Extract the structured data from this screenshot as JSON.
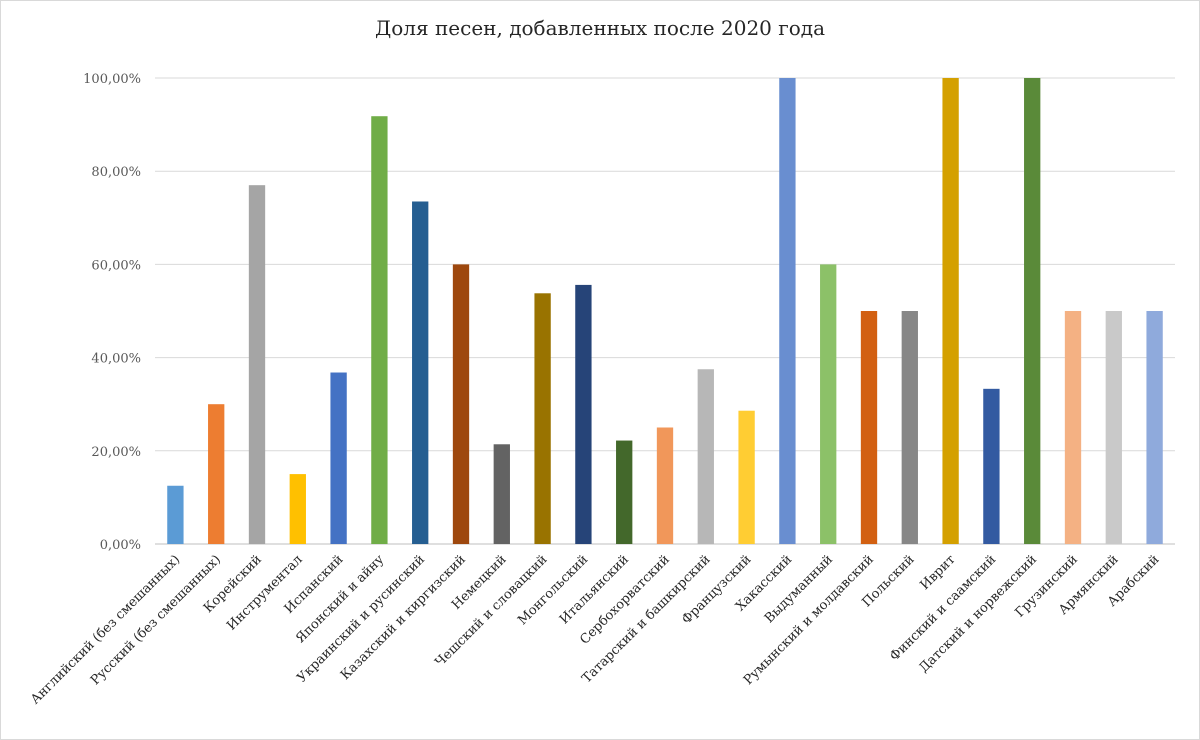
{
  "chart_data": {
    "type": "bar",
    "title": "Доля песен, добавленных после 2020 года",
    "xlabel": "",
    "ylabel": "",
    "ylim": [
      0,
      100
    ],
    "y_ticks": [
      0,
      20,
      40,
      60,
      80,
      100
    ],
    "y_tick_labels": [
      "0,00%",
      "20,00%",
      "40,00%",
      "60,00%",
      "80,00%",
      "100,00%"
    ],
    "grid": true,
    "categories": [
      "Английский (без смешанных)",
      "Русский (без смешанных)",
      "Корейский",
      "Инструментал",
      "Испанский",
      "Японский и айну",
      "Украинский и русинский",
      "Казахский и киргизский",
      "Немецкий",
      "Чешский и словацкий",
      "Монгольский",
      "Итальянский",
      "Сербохорватский",
      "Татарский и башкирский",
      "Французский",
      "Хакасский",
      "Выдуманный",
      "Румынский и молдавский",
      "Польский",
      "Иврит",
      "Финский и саамский",
      "Датский и норвежский",
      "Грузинский",
      "Армянский",
      "Арабский"
    ],
    "values": [
      12.5,
      30.0,
      77.0,
      15.0,
      36.8,
      91.8,
      73.5,
      60.0,
      21.4,
      53.8,
      55.6,
      22.2,
      25.0,
      37.5,
      28.6,
      100.0,
      60.0,
      50.0,
      50.0,
      100.0,
      33.3,
      100.0,
      50.0,
      50.0,
      50.0
    ],
    "colors": [
      "#5b9bd5",
      "#ed7d31",
      "#a5a5a5",
      "#ffc000",
      "#4472c4",
      "#70ad47",
      "#255e91",
      "#9e480e",
      "#636363",
      "#997300",
      "#264478",
      "#43682b",
      "#f1975a",
      "#b7b7b7",
      "#ffcd33",
      "#698ed0",
      "#8cc168",
      "#d26012",
      "#878787",
      "#d4a000",
      "#335aa1",
      "#5a8a39",
      "#f4b183",
      "#c9c9c9",
      "#8faadc"
    ]
  }
}
